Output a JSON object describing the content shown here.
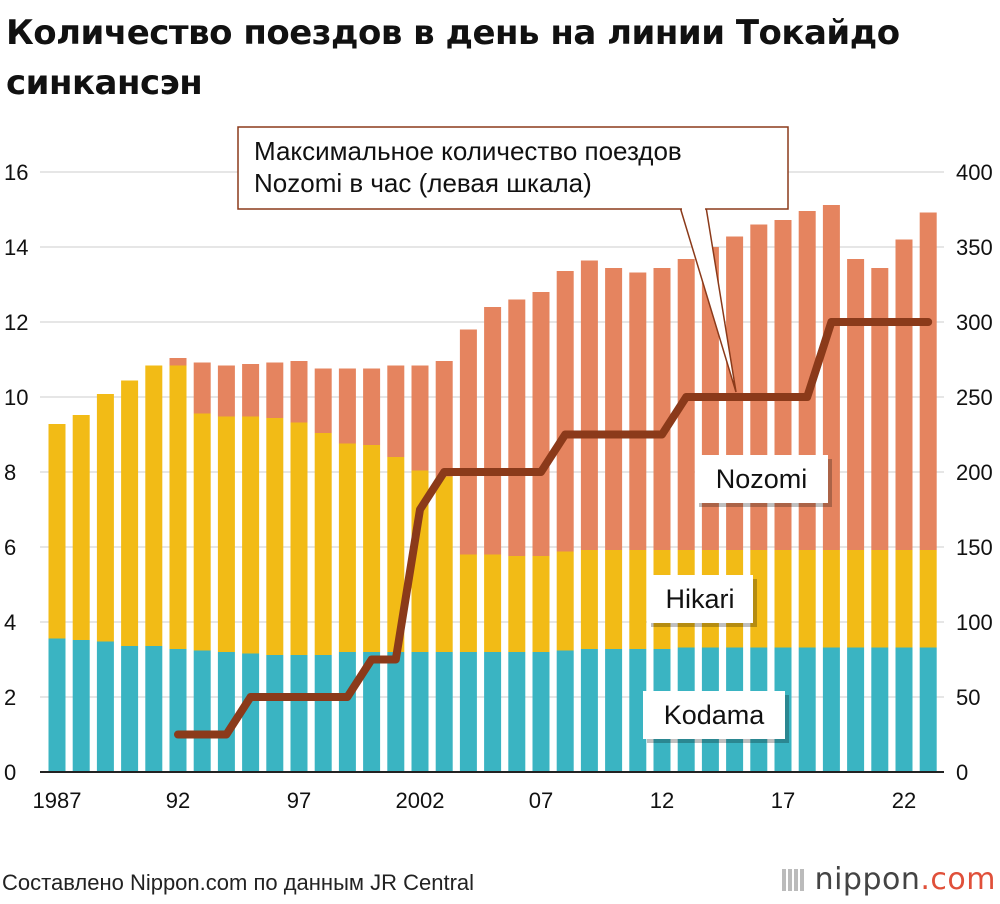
{
  "title": "Количество поездов в день на линии Токайдо синкансэн",
  "source": "Составлено Nippon.com по данным JR Central",
  "logo": {
    "text": "nippon",
    "suffix": ".com",
    "mark_icon": "nippon-logo-icon"
  },
  "colors": {
    "kodama": "#3ab4c2",
    "hikari": "#f2bb16",
    "nozomi": "#e5845f",
    "line": "#8b3a1a",
    "label_border": "#8b3a1a",
    "grid": "#cccccc"
  },
  "chart_data": {
    "type": "bar",
    "stacked": true,
    "years": [
      1987,
      1988,
      1989,
      1990,
      1991,
      1992,
      1993,
      1994,
      1995,
      1996,
      1997,
      1998,
      1999,
      2000,
      2001,
      2002,
      2003,
      2004,
      2005,
      2006,
      2007,
      2008,
      2009,
      2010,
      2011,
      2012,
      2013,
      2014,
      2015,
      2016,
      2017,
      2018,
      2019,
      2020,
      2021,
      2022,
      2023
    ],
    "x_tick_labels": [
      "1987",
      "",
      "",
      "",
      "",
      "92",
      "",
      "",
      "",
      "",
      "97",
      "",
      "",
      "",
      "",
      "2002",
      "",
      "",
      "",
      "",
      "07",
      "",
      "",
      "",
      "",
      "12",
      "",
      "",
      "",
      "",
      "17",
      "",
      "",
      "",
      "",
      "22",
      ""
    ],
    "left_axis": {
      "min": 0,
      "max": 16,
      "ticks": [
        "0",
        "2",
        "4",
        "6",
        "8",
        "10",
        "12",
        "14",
        "16"
      ]
    },
    "right_axis": {
      "min": 0,
      "max": 400,
      "ticks": [
        "0",
        "50",
        "100",
        "150",
        "200",
        "250",
        "300",
        "350",
        "400"
      ]
    },
    "series": [
      {
        "name": "Kodama",
        "axis": "right",
        "values": [
          89,
          88,
          87,
          84,
          84,
          82,
          81,
          80,
          79,
          78,
          78,
          78,
          80,
          80,
          80,
          80,
          80,
          80,
          80,
          80,
          80,
          81,
          82,
          82,
          82,
          82,
          83,
          83,
          83,
          83,
          83,
          83,
          83,
          83,
          83,
          83,
          83
        ]
      },
      {
        "name": "Hikari",
        "axis": "right",
        "values": [
          143,
          150,
          165,
          177,
          187,
          189,
          158,
          157,
          158,
          158,
          155,
          148,
          139,
          138,
          130,
          121,
          117,
          65,
          65,
          64,
          64,
          66,
          66,
          66,
          66,
          66,
          65,
          65,
          65,
          65,
          65,
          65,
          65,
          65,
          65,
          65,
          65
        ]
      },
      {
        "name": "Nozomi",
        "axis": "right",
        "values": [
          0,
          0,
          0,
          0,
          0,
          5,
          34,
          34,
          35,
          37,
          41,
          43,
          50,
          51,
          61,
          70,
          77,
          150,
          165,
          171,
          176,
          187,
          193,
          188,
          185,
          188,
          194,
          202,
          209,
          217,
          220,
          226,
          230,
          194,
          188,
          207,
          225
        ]
      }
    ],
    "line": {
      "name": "Максимальное количество поездов Nozomi в час (левая шкала)",
      "axis": "left",
      "x": [
        1992,
        1994,
        1995,
        1999,
        2000,
        2001,
        2002,
        2003,
        2007,
        2008,
        2012,
        2013,
        2018,
        2019,
        2023
      ],
      "y": [
        1,
        1,
        2,
        2,
        3,
        3,
        7,
        8,
        8,
        9,
        9,
        10,
        10,
        12,
        12
      ]
    },
    "series_labels": [
      {
        "text": "Nozomi",
        "series": "Nozomi"
      },
      {
        "text": "Hikari",
        "series": "Hikari"
      },
      {
        "text": "Kodama",
        "series": "Kodama"
      }
    ],
    "annotation": {
      "lines": [
        "Максимальное количество поездов",
        "Nozomi в час (левая шкала)"
      ]
    }
  }
}
